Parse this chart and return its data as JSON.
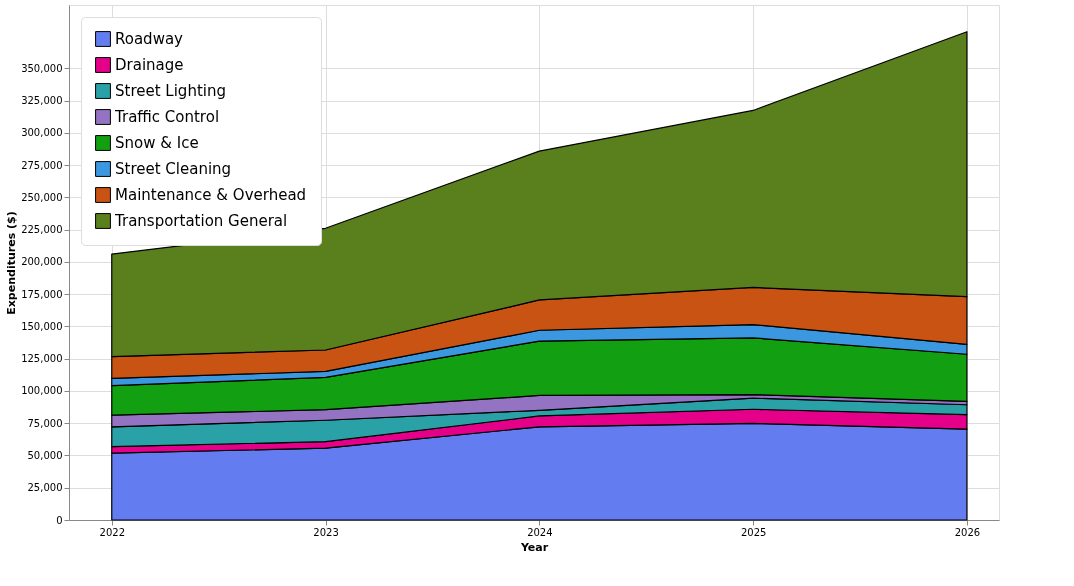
{
  "chart_data": {
    "type": "area",
    "stacked": true,
    "xlabel": "Year",
    "ylabel": "Expenditures ($)",
    "x": [
      2022,
      2023,
      2024,
      2025,
      2026
    ],
    "xlim": [
      2021.8,
      2026.15
    ],
    "xticks": [
      2022,
      2023,
      2024,
      2025,
      2026
    ],
    "ylim": [
      0,
      399000
    ],
    "yticks": [
      {
        "value": 0,
        "label": "0"
      },
      {
        "value": 25000,
        "label": "25,000"
      },
      {
        "value": 50000,
        "label": "50,000"
      },
      {
        "value": 75000,
        "label": "75,000"
      },
      {
        "value": 100000,
        "label": "100,000"
      },
      {
        "value": 125000,
        "label": "125,000"
      },
      {
        "value": 150000,
        "label": "150,000"
      },
      {
        "value": 175000,
        "label": "175,000"
      },
      {
        "value": 200000,
        "label": "200,000"
      },
      {
        "value": 225000,
        "label": "225,000"
      },
      {
        "value": 250000,
        "label": "250,000"
      },
      {
        "value": 275000,
        "label": "275,000"
      },
      {
        "value": 300000,
        "label": "300,000"
      },
      {
        "value": 325000,
        "label": "325,000"
      },
      {
        "value": 350000,
        "label": "350,000"
      }
    ],
    "grid": true,
    "legend": "top left",
    "series": [
      {
        "name": "Roadway",
        "color": "#637df0",
        "values": [
          51800,
          55700,
          72200,
          74800,
          70400
        ]
      },
      {
        "name": "Drainage",
        "color": "#e5008a",
        "values": [
          5100,
          5000,
          8400,
          11000,
          11300
        ]
      },
      {
        "name": "Street Lighting",
        "color": "#2aa1a6",
        "values": [
          15300,
          16600,
          4400,
          8600,
          7600
        ]
      },
      {
        "name": "Traffic Control",
        "color": "#9473c2",
        "values": [
          9000,
          8200,
          11500,
          2800,
          2600
        ]
      },
      {
        "name": "Snow & Ice",
        "color": "#139f12",
        "values": [
          22900,
          25000,
          42100,
          43900,
          36500
        ]
      },
      {
        "name": "Street Cleaning",
        "color": "#3b98e0",
        "values": [
          5600,
          4600,
          8400,
          10300,
          7700
        ]
      },
      {
        "name": "Maintenance & Overhead",
        "color": "#c95312",
        "values": [
          16900,
          16600,
          23500,
          28800,
          36900
        ]
      },
      {
        "name": "Transportation General",
        "color": "#5a801e",
        "values": [
          79400,
          94300,
          115300,
          137100,
          205300
        ]
      }
    ]
  }
}
